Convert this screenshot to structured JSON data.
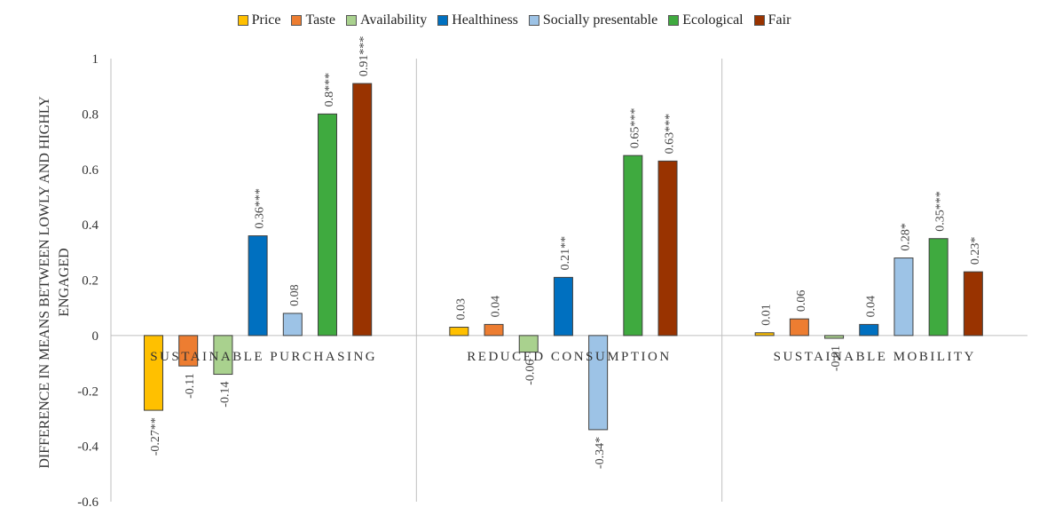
{
  "chart_data": {
    "type": "bar",
    "groups": [
      "SUSTAINABLE PURCHASING",
      "REDUCED CONSUMPTION",
      "SUSTAINABLE MOBILITY"
    ],
    "series": [
      {
        "name": "Price",
        "color": "#FFC000",
        "values": [
          -0.27,
          0.03,
          0.01
        ],
        "labels": [
          "-0.27**",
          "0.03",
          "0.01"
        ]
      },
      {
        "name": "Taste",
        "color": "#ED7D31",
        "values": [
          -0.11,
          0.04,
          0.06
        ],
        "labels": [
          "-0.11",
          "0.04",
          "0.06"
        ]
      },
      {
        "name": "Availability",
        "color": "#A9D18E",
        "values": [
          -0.14,
          -0.06,
          -0.01
        ],
        "labels": [
          "-0.14",
          "-0.06",
          "-0.01"
        ]
      },
      {
        "name": "Healthiness",
        "color": "#0070C0",
        "values": [
          0.36,
          0.21,
          0.04
        ],
        "labels": [
          "0.36***",
          "0.21**",
          "0.04"
        ]
      },
      {
        "name": "Socially presentable",
        "color": "#9DC3E6",
        "values": [
          0.08,
          -0.34,
          0.28
        ],
        "labels": [
          "0.08",
          "-0.34*",
          "0.28*"
        ]
      },
      {
        "name": "Ecological",
        "color": "#3FAA3F",
        "values": [
          0.8,
          0.65,
          0.35
        ],
        "labels": [
          "0.8***",
          "0.65***",
          "0.35***"
        ]
      },
      {
        "name": "Fair",
        "color": "#993300",
        "values": [
          0.91,
          0.63,
          0.23
        ],
        "labels": [
          "0.91***",
          "0.63***",
          "0.23*"
        ]
      }
    ],
    "ylabel": "DIFFERENCE IN MEANS BETWEEN LOWLY AND HIGHLY ENGAGED",
    "ylim": [
      -0.6,
      1
    ],
    "yticks": [
      "1",
      "0.8",
      "0.6",
      "0.4",
      "0.2",
      "0",
      "-0.2",
      "-0.4",
      "-0.6"
    ],
    "ytick_values": [
      1,
      0.8,
      0.6,
      0.4,
      0.2,
      0,
      -0.2,
      -0.4,
      -0.6
    ],
    "grid": false,
    "legend": "top"
  }
}
